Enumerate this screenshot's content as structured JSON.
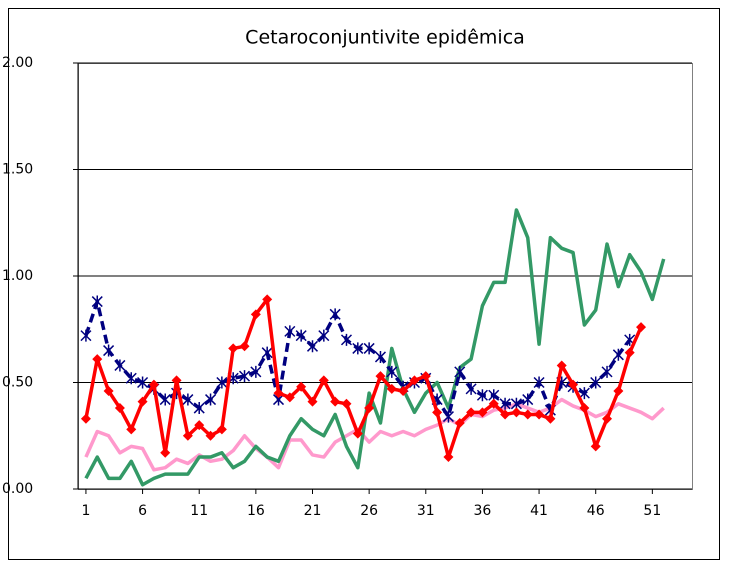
{
  "chart_data": {
    "type": "line",
    "title": "Cetaroconjuntivite epidêmica",
    "x": [
      1,
      2,
      3,
      4,
      5,
      6,
      7,
      8,
      9,
      10,
      11,
      12,
      13,
      14,
      15,
      16,
      17,
      18,
      19,
      20,
      21,
      22,
      23,
      24,
      25,
      26,
      27,
      28,
      29,
      30,
      31,
      32,
      33,
      34,
      35,
      36,
      37,
      38,
      39,
      40,
      41,
      42,
      43,
      44,
      45,
      46,
      47,
      48,
      49,
      50,
      51,
      52
    ],
    "xlim": [
      0.3,
      54.5
    ],
    "xticks": [
      1,
      6,
      11,
      16,
      21,
      26,
      31,
      36,
      41,
      46,
      51
    ],
    "ylim": [
      0,
      2
    ],
    "yticks": [
      {
        "value": 0,
        "label": "0.00"
      },
      {
        "value": 0.5,
        "label": "0.50"
      },
      {
        "value": 1,
        "label": "1.00"
      },
      {
        "value": 1.5,
        "label": "1.50"
      },
      {
        "value": 2,
        "label": "2.00"
      }
    ],
    "grid": true,
    "series": [
      {
        "color": "#ff99cc",
        "marker": "none",
        "dash": false,
        "values": [
          0.15,
          0.27,
          0.25,
          0.17,
          0.2,
          0.19,
          0.09,
          0.1,
          0.14,
          0.12,
          0.16,
          0.13,
          0.14,
          0.18,
          0.25,
          0.19,
          0.15,
          0.1,
          0.23,
          0.23,
          0.16,
          0.15,
          0.22,
          0.25,
          0.28,
          0.22,
          0.27,
          0.25,
          0.27,
          0.25,
          0.28,
          0.3,
          0.33,
          0.3,
          0.35,
          0.34,
          0.37,
          0.38,
          0.4,
          0.38,
          0.36,
          0.38,
          0.42,
          0.39,
          0.37,
          0.34,
          0.36,
          0.4,
          0.38,
          0.36,
          0.33,
          0.38
        ]
      },
      {
        "color": "#339966",
        "marker": "none",
        "dash": false,
        "values": [
          0.05,
          0.15,
          0.05,
          0.05,
          0.13,
          0.02,
          0.05,
          0.07,
          0.07,
          0.07,
          0.15,
          0.15,
          0.17,
          0.1,
          0.13,
          0.2,
          0.15,
          0.13,
          0.25,
          0.33,
          0.28,
          0.25,
          0.35,
          0.2,
          0.1,
          0.45,
          0.31,
          0.66,
          0.47,
          0.36,
          0.45,
          0.5,
          0.38,
          0.57,
          0.61,
          0.86,
          0.97,
          0.97,
          1.31,
          1.18,
          0.68,
          1.18,
          1.13,
          1.11,
          0.77,
          0.84,
          1.15,
          0.95,
          1.1,
          1.02,
          0.89,
          1.08
        ]
      },
      {
        "color": "#000080",
        "marker": "star",
        "dash": true,
        "values": [
          0.72,
          0.88,
          0.65,
          0.58,
          0.52,
          0.5,
          0.47,
          0.42,
          0.45,
          0.42,
          0.38,
          0.42,
          0.5,
          0.52,
          0.53,
          0.55,
          0.64,
          0.42,
          0.74,
          0.72,
          0.67,
          0.72,
          0.82,
          0.7,
          0.66,
          0.66,
          0.62,
          0.55,
          0.48,
          0.5,
          0.52,
          0.42,
          0.34,
          0.55,
          0.47,
          0.44,
          0.44,
          0.4,
          0.4,
          0.42,
          0.5,
          0.37,
          0.5,
          0.48,
          0.45,
          0.5,
          0.55,
          0.63,
          0.7,
          null,
          null,
          null
        ]
      },
      {
        "color": "#ff0000",
        "marker": "diamond",
        "dash": false,
        "values": [
          0.33,
          0.61,
          0.46,
          0.38,
          0.28,
          0.41,
          0.49,
          0.17,
          0.51,
          0.25,
          0.3,
          0.25,
          0.28,
          0.66,
          0.67,
          0.82,
          0.89,
          0.45,
          0.43,
          0.48,
          0.41,
          0.51,
          0.41,
          0.4,
          0.26,
          0.38,
          0.53,
          0.47,
          0.46,
          0.51,
          0.53,
          0.36,
          0.15,
          0.31,
          0.36,
          0.36,
          0.4,
          0.35,
          0.36,
          0.35,
          0.35,
          0.33,
          0.58,
          0.49,
          0.38,
          0.2,
          0.33,
          0.46,
          0.64,
          0.76,
          null,
          null
        ]
      }
    ]
  }
}
